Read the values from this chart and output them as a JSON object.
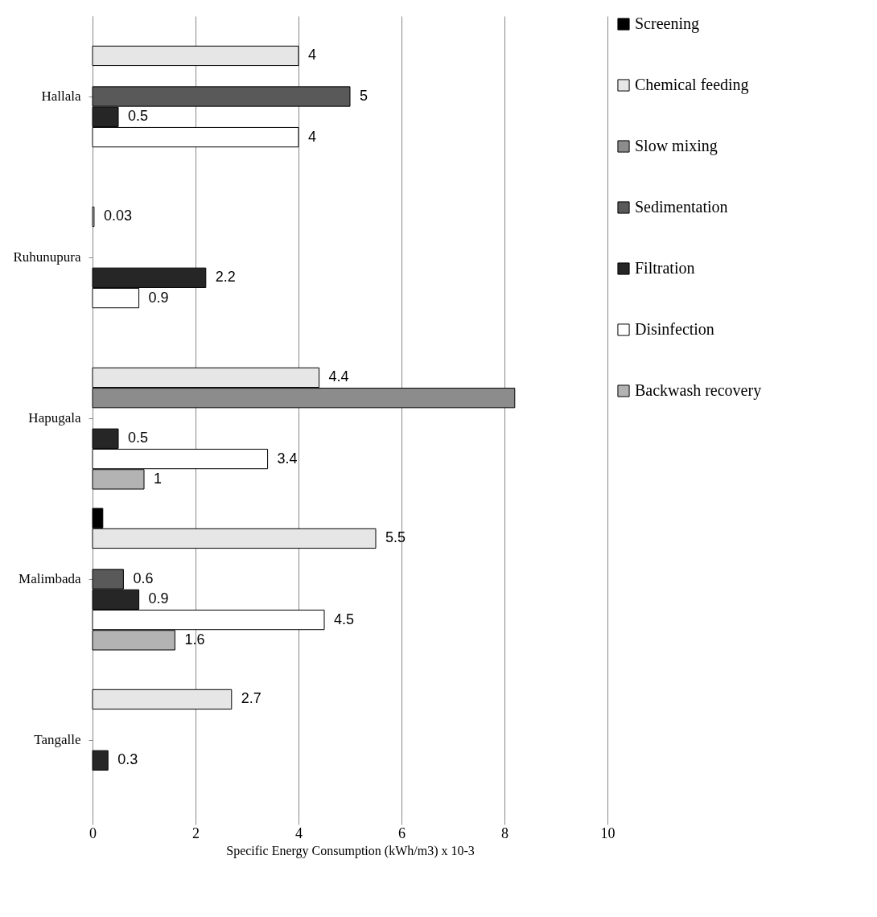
{
  "chart_data": {
    "type": "bar",
    "orientation": "horizontal",
    "xlabel": "Specific Energy Consumption (kWh/m3) x 10-3",
    "categories": [
      "Hallala",
      "Ruhunupura",
      "Hapugala",
      "Malimbada",
      "Tangalle"
    ],
    "series": [
      {
        "name": "Screening",
        "color": "#000000",
        "values": [
          null,
          null,
          null,
          0.2,
          null
        ],
        "value_labels": [
          null,
          null,
          null,
          null,
          null
        ]
      },
      {
        "name": "Chemical feeding",
        "color": "#e6e6e6",
        "values": [
          4,
          0.03,
          4.4,
          5.5,
          2.7
        ],
        "value_labels": [
          "4",
          "0.03",
          "4.4",
          "5.5",
          "2.7"
        ]
      },
      {
        "name": "Slow mixing",
        "color": "#8c8c8c",
        "values": [
          null,
          null,
          8.2,
          null,
          null
        ],
        "value_labels": [
          null,
          null,
          null,
          null,
          null
        ]
      },
      {
        "name": "Sedimentation",
        "color": "#595959",
        "values": [
          5,
          null,
          null,
          0.6,
          null
        ],
        "value_labels": [
          "5",
          null,
          null,
          "0.6",
          null
        ]
      },
      {
        "name": "Filtration",
        "color": "#262626",
        "values": [
          0.5,
          2.2,
          0.5,
          0.9,
          0.3
        ],
        "value_labels": [
          "0.5",
          "2.2",
          "0.5",
          "0.9",
          "0.3"
        ]
      },
      {
        "name": "Disinfection",
        "color": "#ffffff",
        "values": [
          4,
          0.9,
          3.4,
          4.5,
          null
        ],
        "value_labels": [
          "4",
          "0.9",
          "3.4",
          "4.5",
          null
        ]
      },
      {
        "name": "Backwash recovery",
        "color": "#b3b3b3",
        "values": [
          null,
          null,
          1,
          1.6,
          null
        ],
        "value_labels": [
          null,
          null,
          "1",
          "1.6",
          null
        ]
      }
    ],
    "xlim": [
      0,
      10
    ],
    "xticks": [
      0,
      2,
      4,
      6,
      8,
      10
    ],
    "grid": "x",
    "legend": "right"
  }
}
